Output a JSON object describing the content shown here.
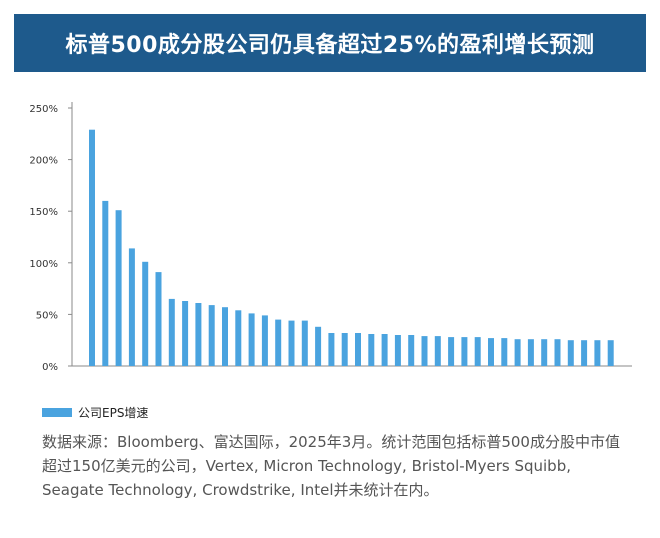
{
  "header": {
    "title": "标普500成分股公司仍具备超过25%的盈利增长预测"
  },
  "chart_data": {
    "type": "bar",
    "title": "标普500成分股公司仍具备超过25%的盈利增长预测",
    "xlabel": "",
    "ylabel": "",
    "ylim": [
      0,
      250
    ],
    "y_ticks": [
      "0%",
      "50%",
      "100%",
      "150%",
      "200%",
      "250%"
    ],
    "y_tick_values": [
      0,
      50,
      100,
      150,
      200,
      250
    ],
    "grid": false,
    "legend_position": "bottom-left",
    "series": [
      {
        "name": "公司EPS增速",
        "color": "#4aa3df",
        "values": [
          229,
          160,
          151,
          114,
          101,
          91,
          65,
          63,
          61,
          59,
          57,
          54,
          51,
          49,
          45,
          44,
          44,
          38,
          32,
          32,
          32,
          31,
          31,
          30,
          30,
          29,
          29,
          28,
          28,
          28,
          27,
          27,
          26,
          26,
          26,
          26,
          25,
          25,
          25,
          25
        ]
      }
    ]
  },
  "legend": {
    "label": "公司EPS增速"
  },
  "source": {
    "text": "数据来源：Bloomberg、富达国际，2025年3月。统计范围包括标普500成分股中市值超过150亿美元的公司，Vertex, Micron Technology, Bristol-Myers Squibb, Seagate Technology, Crowdstrike, Intel并未统计在内。"
  }
}
